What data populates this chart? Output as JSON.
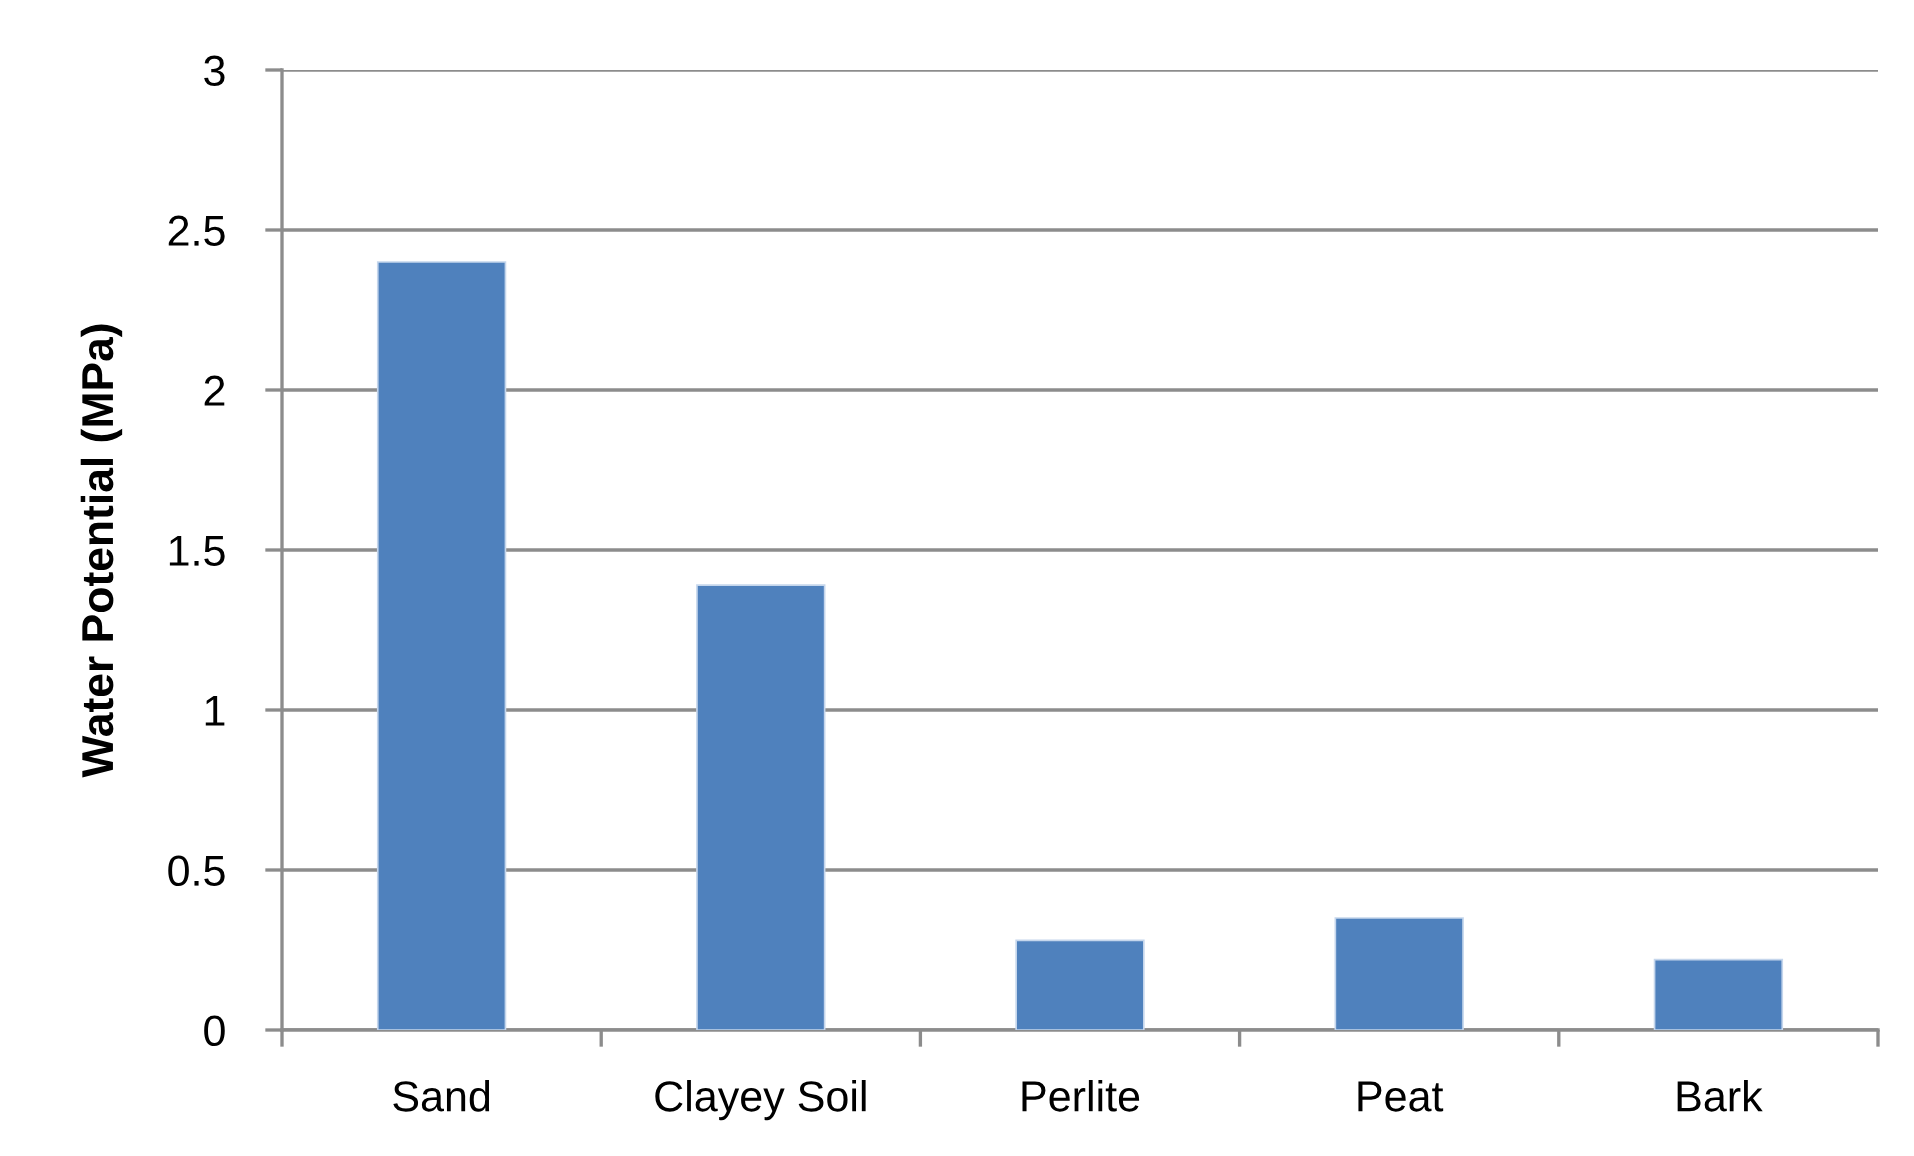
{
  "chart_data": {
    "type": "bar",
    "categories": [
      "Sand",
      "Clayey Soil",
      "Perlite",
      "Peat",
      "Bark"
    ],
    "values": [
      2.4,
      1.39,
      0.28,
      0.35,
      0.22
    ],
    "color": "#4f81bd",
    "ylabel": "Water Potential (MPa)",
    "ylim": [
      0,
      3
    ],
    "yticks": [
      0,
      0.5,
      1,
      1.5,
      2,
      2.5,
      3
    ],
    "grid": "y"
  }
}
